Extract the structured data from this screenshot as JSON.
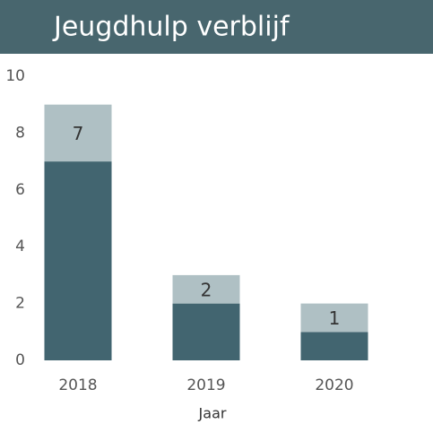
{
  "chart_data": {
    "type": "stacked_bar",
    "title": "Jeugdhulp verblijf",
    "x_label": "Jaar",
    "categories": [
      "2018",
      "2019",
      "2020"
    ],
    "series": [
      {
        "color": "#426570",
        "values": [
          7,
          2,
          1
        ]
      },
      {
        "color": "#afc0c4",
        "values": [
          2,
          1,
          1
        ]
      }
    ],
    "ylim": [
      0,
      10
    ],
    "yticks": [
      0,
      2,
      4,
      6,
      8,
      10
    ],
    "grid": false
  }
}
